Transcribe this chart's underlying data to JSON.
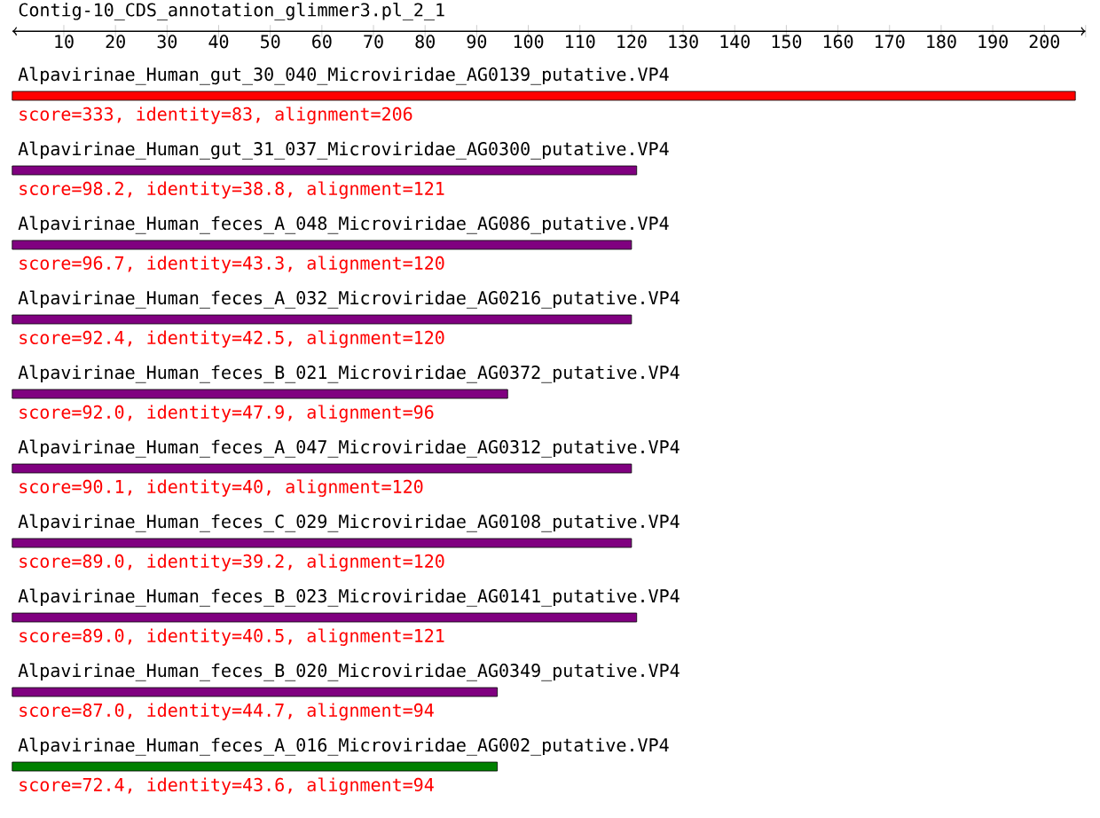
{
  "chart_data": {
    "type": "bar",
    "orientation": "horizontal",
    "title": "Contig-10_CDS_annotation_glimmer3.pl_2_1",
    "categories": [
      "Alpavirinae_Human_gut_30_040_Microviridae_AG0139_putative.VP4",
      "Alpavirinae_Human_gut_31_037_Microviridae_AG0300_putative.VP4",
      "Alpavirinae_Human_feces_A_048_Microviridae_AG086_putative.VP4",
      "Alpavirinae_Human_feces_A_032_Microviridae_AG0216_putative.VP4",
      "Alpavirinae_Human_feces_B_021_Microviridae_AG0372_putative.VP4",
      "Alpavirinae_Human_feces_A_047_Microviridae_AG0312_putative.VP4",
      "Alpavirinae_Human_feces_C_029_Microviridae_AG0108_putative.VP4",
      "Alpavirinae_Human_feces_B_023_Microviridae_AG0141_putative.VP4",
      "Alpavirinae_Human_feces_B_020_Microviridae_AG0349_putative.VP4",
      "Alpavirinae_Human_feces_A_016_Microviridae_AG002_putative.VP4"
    ],
    "values": [
      206,
      121,
      120,
      120,
      96,
      120,
      120,
      121,
      94,
      94
    ],
    "colors": [
      "#ff0000",
      "#800080",
      "#800080",
      "#800080",
      "#800080",
      "#800080",
      "#800080",
      "#800080",
      "#800080",
      "#008000"
    ],
    "value_labels": [
      "score=333, identity=83, alignment=206",
      "score=98.2, identity=38.8, alignment=121",
      "score=96.7, identity=43.3, alignment=120",
      "score=92.4, identity=42.5, alignment=120",
      "score=92.0, identity=47.9, alignment=96",
      "score=90.1, identity=40, alignment=120",
      "score=89.0, identity=39.2, alignment=120",
      "score=89.0, identity=40.5, alignment=121",
      "score=87.0, identity=44.7, alignment=94",
      "score=72.4, identity=43.6, alignment=94"
    ],
    "xlim": [
      0,
      208
    ],
    "xticks": [
      10,
      20,
      30,
      40,
      50,
      60,
      70,
      80,
      90,
      100,
      110,
      120,
      130,
      140,
      150,
      160,
      170,
      180,
      190,
      200,
      {
        "value": 208,
        "label": null
      }
    ]
  }
}
